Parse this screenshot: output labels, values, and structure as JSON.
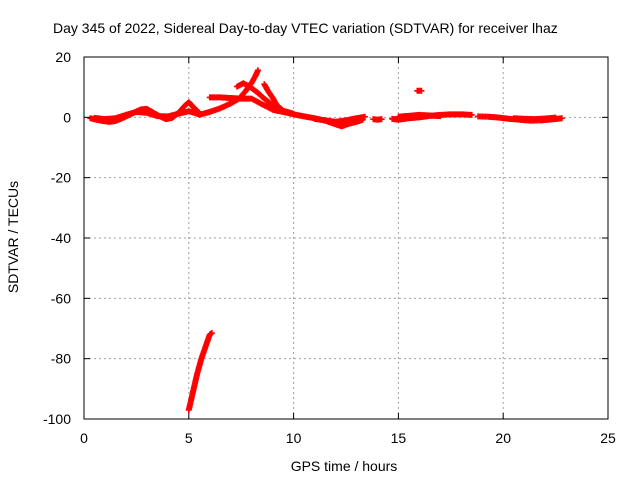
{
  "chart_data": {
    "type": "scatter",
    "title": "Day 345 of 2022, Sidereal Day-to-day VTEC variation (SDTVAR) for receiver lhaz",
    "xlabel": "GPS time / hours",
    "ylabel": "SDTVAR / TECUs",
    "xlim": [
      0,
      25
    ],
    "ylim": [
      -100,
      20
    ],
    "xticks": [
      "0",
      "5",
      "10",
      "15",
      "20",
      "25"
    ],
    "yticks": [
      "20",
      "0",
      "-20",
      "-40",
      "-60",
      "-80",
      "-100"
    ],
    "grid": true,
    "legend": "none",
    "marker_color": "#ff0000",
    "series": [
      {
        "tracks": [
          [
            [
              0.3,
              -0.3
            ],
            [
              0.6,
              -0.8
            ],
            [
              0.9,
              -1.2
            ],
            [
              1.2,
              -1.5
            ],
            [
              1.5,
              -1.2
            ],
            [
              1.8,
              -0.4
            ],
            [
              2.1,
              0.6
            ],
            [
              2.4,
              1.6
            ],
            [
              2.7,
              2.6
            ],
            [
              3.0,
              2.8
            ],
            [
              3.3,
              1.6
            ],
            [
              3.6,
              0.4
            ],
            [
              3.9,
              -0.6
            ],
            [
              4.2,
              -0.2
            ],
            [
              4.5,
              1.4
            ],
            [
              4.8,
              3.8
            ],
            [
              5.0,
              5.0
            ],
            [
              5.2,
              3.5
            ],
            [
              5.5,
              1.5
            ]
          ],
          [
            [
              0.5,
              -0.2
            ],
            [
              1.0,
              -0.6
            ],
            [
              1.5,
              -0.3
            ],
            [
              2.0,
              0.8
            ],
            [
              2.5,
              1.8
            ],
            [
              3.0,
              1.5
            ],
            [
              3.5,
              0.4
            ],
            [
              4.0,
              0.3
            ],
            [
              4.5,
              1.2
            ],
            [
              5.0,
              2.0
            ],
            [
              5.5,
              1.0
            ]
          ],
          [
            [
              5.5,
              0.8
            ],
            [
              6.0,
              1.8
            ],
            [
              6.5,
              3.0
            ],
            [
              7.0,
              4.6
            ],
            [
              7.4,
              6.2
            ],
            [
              7.7,
              8.6
            ],
            [
              8.0,
              11.5
            ],
            [
              8.2,
              14.0
            ],
            [
              8.3,
              15.6
            ]
          ],
          [
            [
              7.3,
              10.2
            ],
            [
              7.6,
              11.3
            ],
            [
              7.9,
              10.2
            ],
            [
              8.3,
              8.1
            ],
            [
              8.6,
              6.2
            ],
            [
              8.9,
              4.6
            ],
            [
              9.2,
              2.2
            ]
          ],
          [
            [
              8.6,
              11.0
            ],
            [
              8.8,
              8.5
            ],
            [
              9.0,
              6.5
            ],
            [
              9.2,
              4.0
            ],
            [
              9.5,
              2.2
            ],
            [
              10.0,
              1.2
            ]
          ],
          [
            [
              6.0,
              6.6
            ],
            [
              6.5,
              6.6
            ],
            [
              7.0,
              6.4
            ],
            [
              7.5,
              6.2
            ],
            [
              8.0,
              6.2
            ],
            [
              8.5,
              4.3
            ],
            [
              9.0,
              2.6
            ]
          ],
          [
            [
              9.0,
              2.5
            ],
            [
              9.5,
              1.8
            ],
            [
              10.0,
              1.0
            ],
            [
              10.5,
              0.3
            ],
            [
              11.0,
              -0.3
            ],
            [
              11.5,
              -1.1
            ],
            [
              12.0,
              -2.3
            ],
            [
              12.3,
              -3.0
            ],
            [
              12.6,
              -2.2
            ],
            [
              13.0,
              -1.5
            ],
            [
              13.3,
              -0.8
            ]
          ],
          [
            [
              11.0,
              -0.5
            ],
            [
              11.5,
              -1.0
            ],
            [
              12.0,
              -1.5
            ],
            [
              12.5,
              -1.0
            ],
            [
              13.0,
              -0.3
            ],
            [
              13.4,
              0.2
            ]
          ],
          [
            [
              13.8,
              -0.6
            ],
            [
              14.0,
              -0.8
            ],
            [
              14.2,
              -0.6
            ]
          ],
          [
            [
              14.7,
              -0.5
            ],
            [
              15.0,
              -0.8
            ],
            [
              15.5,
              -0.3
            ],
            [
              16.0,
              0.0
            ],
            [
              16.5,
              0.5
            ],
            [
              17.0,
              0.8
            ],
            [
              17.5,
              1.0
            ],
            [
              18.0,
              1.0
            ],
            [
              18.5,
              0.8
            ]
          ],
          [
            [
              15.0,
              0.2
            ],
            [
              15.5,
              0.5
            ],
            [
              16.0,
              0.8
            ],
            [
              16.5,
              0.6
            ],
            [
              17.0,
              0.4
            ]
          ],
          [
            [
              18.8,
              0.3
            ],
            [
              19.3,
              0.2
            ],
            [
              19.8,
              -0.1
            ],
            [
              20.3,
              -0.5
            ],
            [
              20.8,
              -0.8
            ],
            [
              21.3,
              -1.1
            ],
            [
              21.8,
              -1.0
            ],
            [
              22.3,
              -0.7
            ],
            [
              22.8,
              -0.3
            ]
          ],
          [
            [
              20.5,
              -0.3
            ],
            [
              21.0,
              -0.5
            ],
            [
              21.5,
              -0.6
            ],
            [
              22.0,
              -0.4
            ],
            [
              22.5,
              -0.1
            ]
          ],
          [
            [
              15.9,
              8.8
            ],
            [
              16.1,
              8.8
            ]
          ],
          [
            [
              5.0,
              -97.0
            ],
            [
              5.2,
              -91.0
            ],
            [
              5.4,
              -85.0
            ],
            [
              5.6,
              -80.0
            ],
            [
              5.8,
              -76.0
            ],
            [
              6.0,
              -72.0
            ],
            [
              6.1,
              -71.5
            ]
          ]
        ]
      }
    ]
  }
}
